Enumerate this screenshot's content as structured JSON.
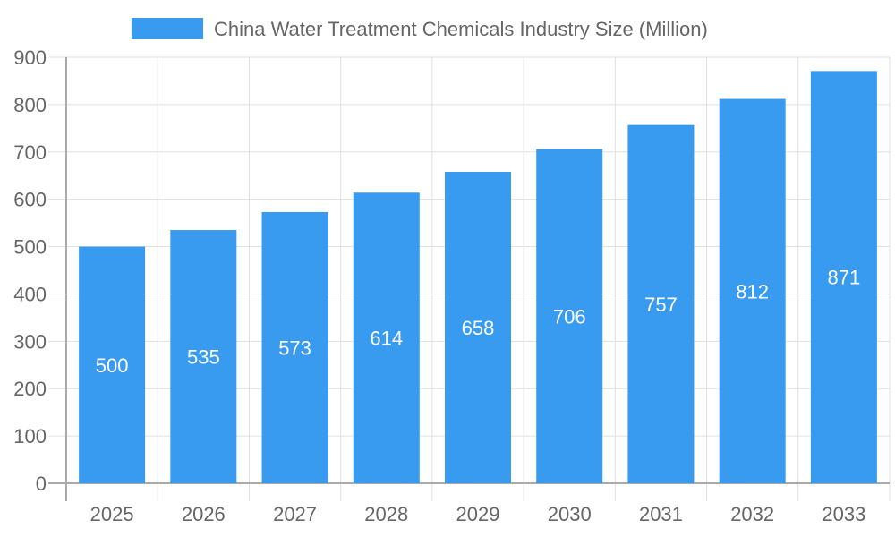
{
  "chart_data": {
    "type": "bar",
    "categories": [
      "2025",
      "2026",
      "2027",
      "2028",
      "2029",
      "2030",
      "2031",
      "2032",
      "2033"
    ],
    "series": [
      {
        "name": "China Water Treatment Chemicals Industry Size (Million)",
        "values": [
          500,
          535,
          573,
          614,
          658,
          706,
          757,
          812,
          871
        ]
      }
    ],
    "ylim": [
      0,
      900
    ],
    "yticks": [
      0,
      100,
      200,
      300,
      400,
      500,
      600,
      700,
      800,
      900
    ],
    "grid": true,
    "legend": "top",
    "data_labels": true,
    "colors": {
      "bar": "#389BEF",
      "grid": "#e0e0e0",
      "axis": "#aaaaaa",
      "text": "#666666"
    }
  }
}
